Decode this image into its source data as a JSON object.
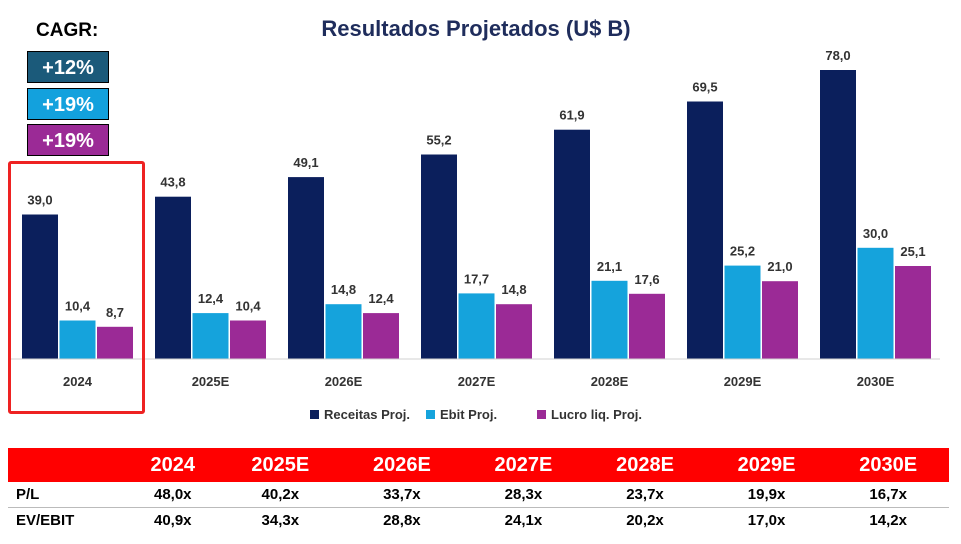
{
  "colors": {
    "receitas": "#0b1f5c",
    "ebit": "#15a3dc",
    "lucro": "#9b2a96",
    "cagr_receitas": "#1b5a7a",
    "cagr_ebit": "#13a1dd",
    "cagr_lucro": "#9b2a96",
    "header": "#ff0000",
    "highlight_border": "#ee2222"
  },
  "cagr": {
    "title": "CAGR:",
    "items": [
      "+12%",
      "+19%",
      "+19%"
    ]
  },
  "chart_data": {
    "type": "bar",
    "title": "Resultados Projetados (U$ B)",
    "categories": [
      "2024",
      "2025E",
      "2026E",
      "2027E",
      "2028E",
      "2029E",
      "2030E"
    ],
    "series": [
      {
        "name": "Receitas Proj.",
        "values": [
          39.0,
          43.8,
          49.1,
          55.2,
          61.9,
          69.5,
          78.0
        ],
        "labels": [
          "39,0",
          "43,8",
          "49,1",
          "55,2",
          "61,9",
          "69,5",
          "78,0"
        ]
      },
      {
        "name": "Ebit Proj.",
        "values": [
          10.4,
          12.4,
          14.8,
          17.7,
          21.1,
          25.2,
          30.0
        ],
        "labels": [
          "10,4",
          "12,4",
          "14,8",
          "17,7",
          "21,1",
          "25,2",
          "30,0"
        ]
      },
      {
        "name": "Lucro liq. Proj.",
        "values": [
          8.7,
          10.4,
          12.4,
          14.8,
          17.6,
          21.0,
          25.1
        ],
        "labels": [
          "8,7",
          "10,4",
          "12,4",
          "14,8",
          "17,6",
          "21,0",
          "25,1"
        ]
      }
    ],
    "ylim": [
      0,
      80
    ],
    "legend": "bottom",
    "grid": false,
    "highlighted_category": "2024"
  },
  "valuation_table": {
    "header_label": "",
    "columns": [
      "2024",
      "2025E",
      "2026E",
      "2027E",
      "2028E",
      "2029E",
      "2030E"
    ],
    "rows": [
      {
        "label": "P/L",
        "values": [
          "48,0x",
          "40,2x",
          "33,7x",
          "28,3x",
          "23,7x",
          "19,9x",
          "16,7x"
        ]
      },
      {
        "label": "EV/EBIT",
        "values": [
          "40,9x",
          "34,3x",
          "28,8x",
          "24,1x",
          "20,2x",
          "17,0x",
          "14,2x"
        ]
      }
    ]
  }
}
